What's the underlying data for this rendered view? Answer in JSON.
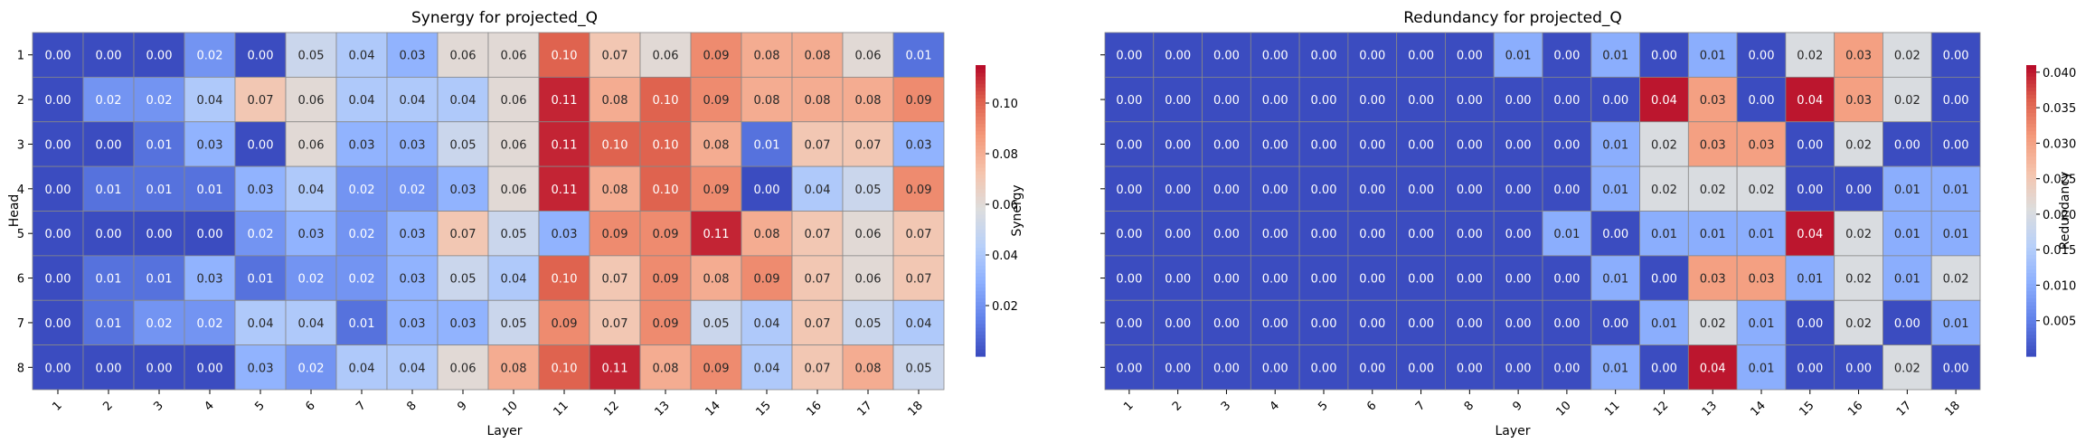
{
  "chart_data": [
    {
      "type": "heatmap",
      "title": "Synergy for projected_Q",
      "xlabel": "Layer",
      "ylabel": "Head",
      "colorbar_label": "Synergy",
      "colormap": "coolwarm",
      "vmin": 0.0,
      "vmax": 0.115,
      "colorbar_ticks": [
        "0.02",
        "0.04",
        "0.06",
        "0.08",
        "0.10"
      ],
      "x_categories": [
        "1",
        "2",
        "3",
        "4",
        "5",
        "6",
        "7",
        "8",
        "9",
        "10",
        "11",
        "12",
        "13",
        "14",
        "15",
        "16",
        "17",
        "18"
      ],
      "y_categories": [
        "1",
        "2",
        "3",
        "4",
        "5",
        "6",
        "7",
        "8"
      ],
      "values": [
        [
          0.0,
          0.0,
          0.0,
          0.02,
          0.0,
          0.05,
          0.04,
          0.03,
          0.06,
          0.06,
          0.1,
          0.07,
          0.06,
          0.09,
          0.08,
          0.08,
          0.06,
          0.01
        ],
        [
          0.0,
          0.02,
          0.02,
          0.04,
          0.07,
          0.06,
          0.04,
          0.04,
          0.04,
          0.06,
          0.11,
          0.08,
          0.1,
          0.09,
          0.08,
          0.08,
          0.08,
          0.09
        ],
        [
          0.0,
          0.0,
          0.01,
          0.03,
          0.0,
          0.06,
          0.03,
          0.03,
          0.05,
          0.06,
          0.11,
          0.1,
          0.1,
          0.08,
          0.01,
          0.07,
          0.07,
          0.03
        ],
        [
          0.0,
          0.01,
          0.01,
          0.01,
          0.03,
          0.04,
          0.02,
          0.02,
          0.03,
          0.06,
          0.11,
          0.08,
          0.1,
          0.09,
          0.0,
          0.04,
          0.05,
          0.09
        ],
        [
          0.0,
          0.0,
          0.0,
          0.0,
          0.02,
          0.03,
          0.02,
          0.03,
          0.07,
          0.05,
          0.03,
          0.09,
          0.09,
          0.11,
          0.08,
          0.07,
          0.06,
          0.07
        ],
        [
          0.0,
          0.01,
          0.01,
          0.03,
          0.01,
          0.02,
          0.02,
          0.03,
          0.05,
          0.04,
          0.1,
          0.07,
          0.09,
          0.08,
          0.09,
          0.07,
          0.06,
          0.07
        ],
        [
          0.0,
          0.01,
          0.02,
          0.02,
          0.04,
          0.04,
          0.01,
          0.03,
          0.03,
          0.05,
          0.09,
          0.07,
          0.09,
          0.05,
          0.04,
          0.07,
          0.05,
          0.04
        ],
        [
          0.0,
          0.0,
          0.0,
          0.0,
          0.03,
          0.02,
          0.04,
          0.04,
          0.06,
          0.08,
          0.1,
          0.11,
          0.08,
          0.09,
          0.04,
          0.07,
          0.08,
          0.05
        ]
      ]
    },
    {
      "type": "heatmap",
      "title": "Redundancy for projected_Q",
      "xlabel": "Layer",
      "ylabel": "",
      "colorbar_label": "Redundancy",
      "colormap": "coolwarm",
      "vmin": 0.0,
      "vmax": 0.041,
      "colorbar_ticks": [
        "0.005",
        "0.010",
        "0.015",
        "0.020",
        "0.025",
        "0.030",
        "0.035",
        "0.040"
      ],
      "x_categories": [
        "1",
        "2",
        "3",
        "4",
        "5",
        "6",
        "7",
        "8",
        "9",
        "10",
        "11",
        "12",
        "13",
        "14",
        "15",
        "16",
        "17",
        "18"
      ],
      "y_categories": [
        "1",
        "2",
        "3",
        "4",
        "5",
        "6",
        "7",
        "8"
      ],
      "values": [
        [
          0.0,
          0.0,
          0.0,
          0.0,
          0.0,
          0.0,
          0.0,
          0.0,
          0.01,
          0.0,
          0.01,
          0.0,
          0.01,
          0.0,
          0.02,
          0.03,
          0.02,
          0.0
        ],
        [
          0.0,
          0.0,
          0.0,
          0.0,
          0.0,
          0.0,
          0.0,
          0.0,
          0.0,
          0.0,
          0.0,
          0.04,
          0.03,
          0.0,
          0.04,
          0.03,
          0.02,
          0.0
        ],
        [
          0.0,
          0.0,
          0.0,
          0.0,
          0.0,
          0.0,
          0.0,
          0.0,
          0.0,
          0.0,
          0.01,
          0.02,
          0.03,
          0.03,
          0.0,
          0.02,
          0.0,
          0.0
        ],
        [
          0.0,
          0.0,
          0.0,
          0.0,
          0.0,
          0.0,
          0.0,
          0.0,
          0.0,
          0.0,
          0.01,
          0.02,
          0.02,
          0.02,
          0.0,
          0.0,
          0.01,
          0.01
        ],
        [
          0.0,
          0.0,
          0.0,
          0.0,
          0.0,
          0.0,
          0.0,
          0.0,
          0.0,
          0.01,
          0.0,
          0.01,
          0.01,
          0.01,
          0.04,
          0.02,
          0.01,
          0.01
        ],
        [
          0.0,
          0.0,
          0.0,
          0.0,
          0.0,
          0.0,
          0.0,
          0.0,
          0.0,
          0.0,
          0.01,
          0.0,
          0.03,
          0.03,
          0.01,
          0.02,
          0.01,
          0.02
        ],
        [
          0.0,
          0.0,
          0.0,
          0.0,
          0.0,
          0.0,
          0.0,
          0.0,
          0.0,
          0.0,
          0.0,
          0.01,
          0.02,
          0.01,
          0.0,
          0.02,
          0.0,
          0.01
        ],
        [
          0.0,
          0.0,
          0.0,
          0.0,
          0.0,
          0.0,
          0.0,
          0.0,
          0.0,
          0.0,
          0.01,
          0.0,
          0.04,
          0.01,
          0.0,
          0.0,
          0.02,
          0.0
        ]
      ]
    }
  ]
}
